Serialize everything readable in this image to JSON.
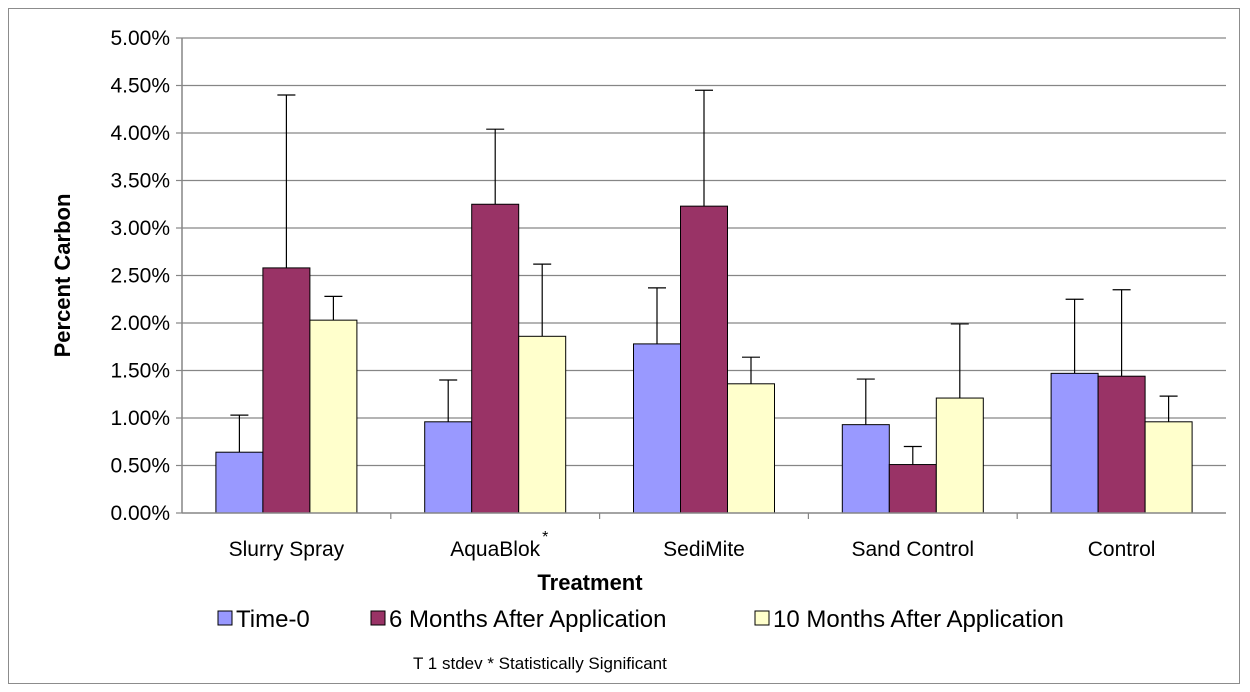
{
  "chart_data": {
    "type": "bar",
    "title": "",
    "xlabel": "Treatment",
    "ylabel": "Percent Carbon",
    "ylim": [
      0,
      0.05
    ],
    "ytick_step": 0.005,
    "ytick_format": "percent_2dp",
    "grid": "horizontal",
    "legend_position": "bottom",
    "categories": [
      "Slurry Spray",
      "AquaBlok",
      "SediMite",
      "Sand Control",
      "Control"
    ],
    "category_annotations": [
      "",
      "*",
      "",
      "",
      ""
    ],
    "series": [
      {
        "name": "Time-0",
        "color": "#9999ff",
        "values": [
          0.0064,
          0.0096,
          0.0178,
          0.0093,
          0.0147
        ],
        "error_plus": [
          0.0039,
          0.0044,
          0.0059,
          0.0048,
          0.0078
        ]
      },
      {
        "name": "6 Months After Application",
        "color": "#993366",
        "values": [
          0.0258,
          0.0325,
          0.0323,
          0.0051,
          0.0144
        ],
        "error_plus": [
          0.0182,
          0.0079,
          0.0122,
          0.0019,
          0.0091
        ]
      },
      {
        "name": "10 Months After Application",
        "color": "#ffffcc",
        "values": [
          0.0203,
          0.0186,
          0.0136,
          0.0121,
          0.0096
        ],
        "error_plus": [
          0.0025,
          0.0076,
          0.0028,
          0.0078,
          0.0027
        ]
      }
    ],
    "footnote": "T 1 stdev  * Statistically Significant"
  }
}
